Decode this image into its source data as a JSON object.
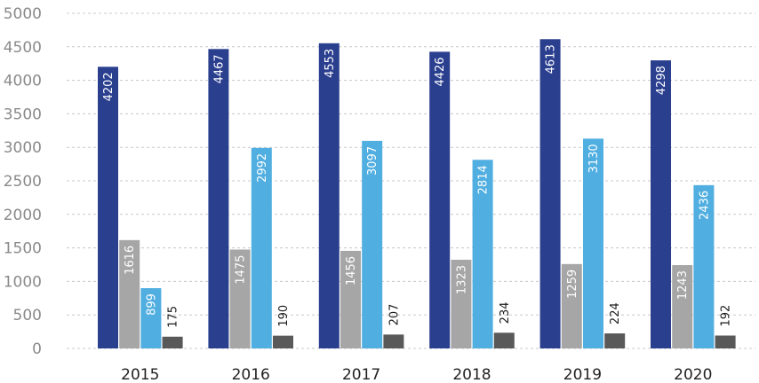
{
  "chart_data": {
    "type": "bar",
    "categories": [
      "2015",
      "2016",
      "2017",
      "2018",
      "2019",
      "2020"
    ],
    "series": [
      {
        "values": [
          4202,
          4467,
          4553,
          4426,
          4613,
          4298
        ],
        "color": "#2b3f8f",
        "label_color": "#ffffff",
        "label_pos": "inside-top"
      },
      {
        "values": [
          1616,
          1475,
          1456,
          1323,
          1259,
          1243
        ],
        "color": "#a6a6a6",
        "label_color": "#ffffff",
        "label_pos": "inside-top"
      },
      {
        "values": [
          899,
          2992,
          3097,
          2814,
          3130,
          2436
        ],
        "color": "#50aee0",
        "label_color": "#ffffff",
        "label_pos": "inside-top"
      },
      {
        "values": [
          175,
          190,
          207,
          234,
          224,
          192
        ],
        "color": "#595959",
        "label_color": "#1a1a1a",
        "label_pos": "above"
      }
    ],
    "ylim": [
      0,
      5000
    ],
    "yticks": [
      0,
      500,
      1000,
      1500,
      2000,
      2500,
      3000,
      3500,
      4000,
      4500,
      5000
    ],
    "grid": true,
    "xlabel": "",
    "ylabel": "",
    "title": ""
  }
}
